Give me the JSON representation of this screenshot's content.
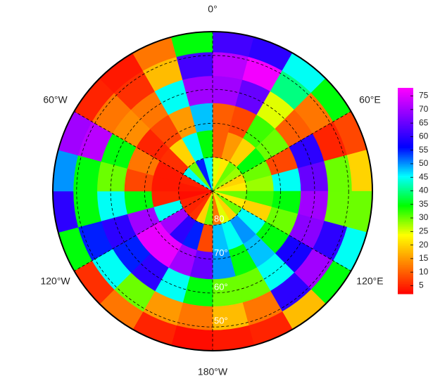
{
  "chart_data": {
    "type": "polar_heatmap",
    "lon_edges": [
      0,
      15,
      30,
      45,
      60,
      75,
      90,
      105,
      120,
      135,
      150,
      165,
      180,
      195,
      210,
      225,
      240,
      255,
      270,
      285,
      300,
      315,
      330,
      345,
      360
    ],
    "lat_edges": [
      -90,
      -80,
      -72,
      -64,
      -56,
      -49,
      -43
    ],
    "values": [
      [
        25,
        10,
        10,
        70,
        72,
        62
      ],
      [
        22,
        15,
        8,
        65,
        77,
        60
      ],
      [
        30,
        20,
        32,
        25,
        40,
        45
      ],
      [
        28,
        35,
        30,
        10,
        12,
        35
      ],
      [
        20,
        30,
        8,
        60,
        5,
        8
      ],
      [
        22,
        28,
        45,
        65,
        30,
        20
      ],
      [
        30,
        32,
        35,
        70,
        30,
        30
      ],
      [
        22,
        20,
        30,
        68,
        60,
        45
      ],
      [
        30,
        45,
        35,
        58,
        70,
        35
      ],
      [
        20,
        50,
        48,
        45,
        60,
        18
      ],
      [
        25,
        45,
        35,
        30,
        12,
        5
      ],
      [
        12,
        48,
        50,
        30,
        18,
        4
      ],
      [
        30,
        8,
        65,
        35,
        12,
        3
      ],
      [
        20,
        55,
        70,
        45,
        15,
        5
      ],
      [
        6,
        60,
        76,
        60,
        30,
        12
      ],
      [
        5,
        70,
        76,
        55,
        45,
        6
      ],
      [
        5,
        45,
        70,
        60,
        55,
        35
      ],
      [
        3,
        5,
        35,
        45,
        35,
        60
      ],
      [
        4,
        4,
        8,
        30,
        35,
        50
      ],
      [
        5,
        4,
        12,
        35,
        72,
        70
      ],
      [
        45,
        6,
        5,
        14,
        12,
        5
      ],
      [
        30,
        20,
        8,
        12,
        6,
        4
      ],
      [
        55,
        45,
        15,
        45,
        18,
        12
      ],
      [
        45,
        35,
        48,
        70,
        62,
        35
      ]
    ],
    "rlim": [
      -90,
      -43
    ],
    "rticks": [
      {
        "value": -80,
        "label": "80"
      },
      {
        "value": -70,
        "label": "70°"
      },
      {
        "value": -60,
        "label": "60°"
      },
      {
        "value": -50,
        "label": "50°"
      }
    ],
    "lonticks": [
      {
        "value": 0,
        "label": "0°"
      },
      {
        "value": 60,
        "label": "60°E"
      },
      {
        "value": 120,
        "label": "120°E"
      },
      {
        "value": 180,
        "label": "180°W"
      },
      {
        "value": 240,
        "label": "120°W"
      },
      {
        "value": 300,
        "label": "60°W"
      }
    ],
    "clim": [
      2,
      78
    ],
    "cticks": [
      5,
      10,
      15,
      20,
      25,
      30,
      35,
      40,
      45,
      50,
      55,
      60,
      65,
      70,
      75
    ],
    "colorscale": [
      "#ff0000",
      "#ff8000",
      "#ffff00",
      "#00ff00",
      "#00ffff",
      "#0000ff",
      "#8000ff",
      "#ff00ff"
    ],
    "grid": true
  }
}
